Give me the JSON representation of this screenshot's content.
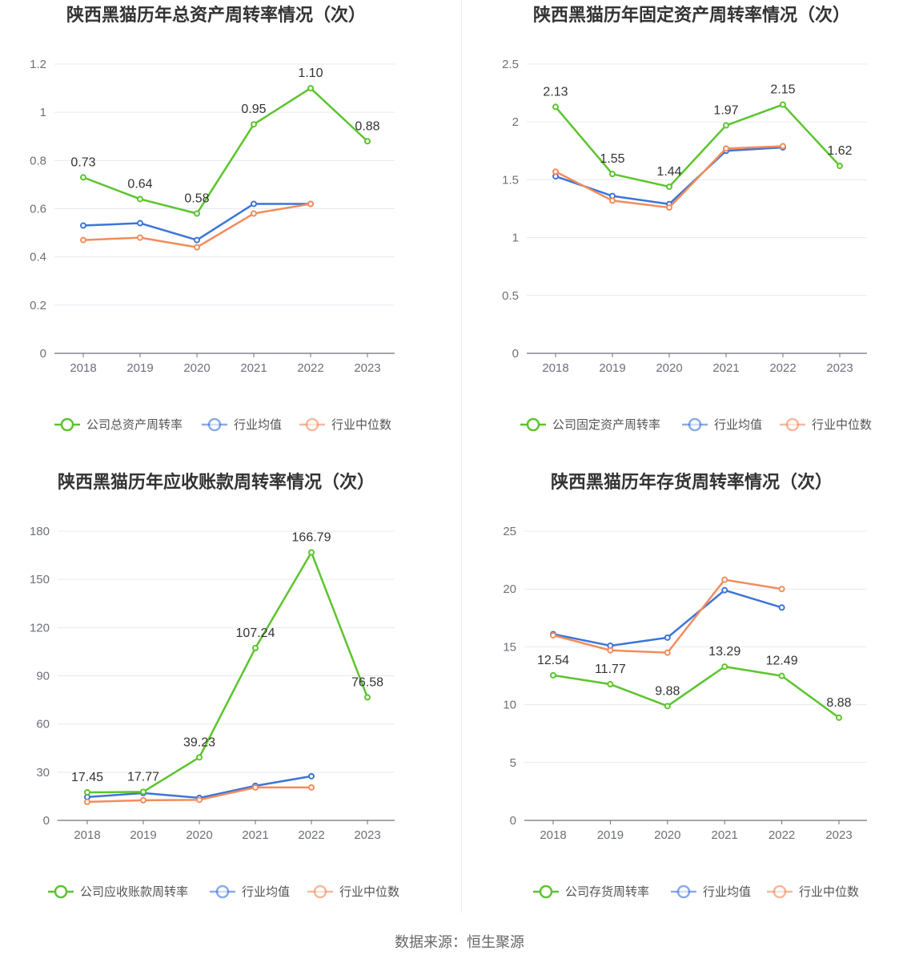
{
  "source": "数据来源：恒生聚源",
  "chart_data": [
    {
      "type": "line",
      "title": "陕西黑猫历年总资产周转率情况（次）",
      "categories": [
        "2018",
        "2019",
        "2020",
        "2021",
        "2022",
        "2023"
      ],
      "ylim": [
        0,
        1.2
      ],
      "yticks": [
        "0",
        "0.2",
        "0.4",
        "0.6",
        "0.8",
        "1",
        "1.2"
      ],
      "series": [
        {
          "name": "公司总资产周转率",
          "color": "#5cc42e",
          "values": [
            0.73,
            0.64,
            0.58,
            0.95,
            1.1,
            0.88
          ],
          "labels": [
            "0.73",
            "0.64",
            "0.58",
            "0.95",
            "1.10",
            "0.88"
          ]
        },
        {
          "name": "行业均值",
          "color": "#3d74d8",
          "values": [
            0.53,
            0.54,
            0.47,
            0.62,
            0.62,
            null
          ]
        },
        {
          "name": "行业中位数",
          "color": "#f28c5c",
          "values": [
            0.47,
            0.48,
            0.44,
            0.58,
            0.62,
            null
          ]
        }
      ]
    },
    {
      "type": "line",
      "title": "陕西黑猫历年固定资产周转率情况（次）",
      "categories": [
        "2018",
        "2019",
        "2020",
        "2021",
        "2022",
        "2023"
      ],
      "ylim": [
        0,
        2.5
      ],
      "yticks": [
        "0",
        "0.5",
        "1",
        "1.5",
        "2",
        "2.5"
      ],
      "series": [
        {
          "name": "公司固定资产周转率",
          "color": "#5cc42e",
          "values": [
            2.13,
            1.55,
            1.44,
            1.97,
            2.15,
            1.62
          ],
          "labels": [
            "2.13",
            "1.55",
            "1.44",
            "1.97",
            "2.15",
            "1.62"
          ]
        },
        {
          "name": "行业均值",
          "color": "#3d74d8",
          "values": [
            1.53,
            1.36,
            1.29,
            1.75,
            1.78,
            null
          ]
        },
        {
          "name": "行业中位数",
          "color": "#f28c5c",
          "values": [
            1.57,
            1.32,
            1.26,
            1.77,
            1.79,
            null
          ]
        }
      ]
    },
    {
      "type": "line",
      "title": "陕西黑猫历年应收账款周转率情况（次）",
      "categories": [
        "2018",
        "2019",
        "2020",
        "2021",
        "2022",
        "2023"
      ],
      "ylim": [
        0,
        180
      ],
      "yticks": [
        "0",
        "30",
        "60",
        "90",
        "120",
        "150",
        "180"
      ],
      "series": [
        {
          "name": "公司应收账款周转率",
          "color": "#5cc42e",
          "values": [
            17.45,
            17.77,
            39.23,
            107.24,
            166.79,
            76.58
          ],
          "labels": [
            "17.45",
            "17.77",
            "39.23",
            "107.24",
            "166.79",
            "76.58"
          ]
        },
        {
          "name": "行业均值",
          "color": "#3d74d8",
          "values": [
            14.5,
            17.0,
            14.0,
            21.5,
            27.5,
            null
          ]
        },
        {
          "name": "行业中位数",
          "color": "#f28c5c",
          "values": [
            11.5,
            12.5,
            12.8,
            20.5,
            20.5,
            null
          ]
        }
      ]
    },
    {
      "type": "line",
      "title": "陕西黑猫历年存货周转率情况（次）",
      "categories": [
        "2018",
        "2019",
        "2020",
        "2021",
        "2022",
        "2023"
      ],
      "ylim": [
        0,
        25
      ],
      "yticks": [
        "0",
        "5",
        "10",
        "15",
        "20",
        "25"
      ],
      "series": [
        {
          "name": "公司存货周转率",
          "color": "#5cc42e",
          "values": [
            12.54,
            11.77,
            9.88,
            13.29,
            12.49,
            8.88
          ],
          "labels": [
            "12.54",
            "11.77",
            "9.88",
            "13.29",
            "12.49",
            "8.88"
          ]
        },
        {
          "name": "行业均值",
          "color": "#3d74d8",
          "values": [
            16.1,
            15.1,
            15.8,
            19.9,
            18.4,
            null
          ]
        },
        {
          "name": "行业中位数",
          "color": "#f28c5c",
          "values": [
            16.0,
            14.7,
            14.5,
            20.8,
            20.0,
            null
          ]
        }
      ]
    }
  ]
}
